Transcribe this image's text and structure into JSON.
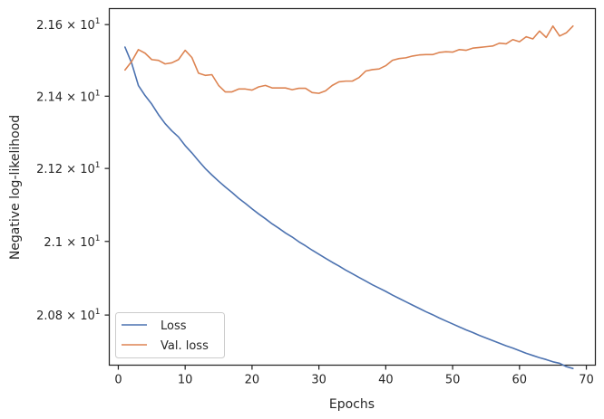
{
  "chart_data": {
    "type": "line",
    "xlabel": "Epochs",
    "ylabel": "Negative log-likelihood",
    "xlim": [
      -1.35,
      71.35
    ],
    "ylim": [
      20.665,
      21.645
    ],
    "yscale": "log",
    "grid": false,
    "legend_position": "lower-left",
    "x_ticks": [
      {
        "value": 0,
        "label": "0"
      },
      {
        "value": 10,
        "label": "10"
      },
      {
        "value": 20,
        "label": "20"
      },
      {
        "value": 30,
        "label": "30"
      },
      {
        "value": 40,
        "label": "40"
      },
      {
        "value": 50,
        "label": "50"
      },
      {
        "value": 60,
        "label": "60"
      },
      {
        "value": 70,
        "label": "70"
      }
    ],
    "y_ticks": [
      {
        "value": 20.8,
        "mantissa": "2.08",
        "exponent": "1"
      },
      {
        "value": 21.0,
        "mantissa": "2.1",
        "exponent": "1"
      },
      {
        "value": 21.2,
        "mantissa": "2.12",
        "exponent": "1"
      },
      {
        "value": 21.4,
        "mantissa": "2.14",
        "exponent": "1"
      },
      {
        "value": 21.6,
        "mantissa": "2.16",
        "exponent": "1"
      }
    ],
    "x": [
      1,
      2,
      3,
      4,
      5,
      6,
      7,
      8,
      9,
      10,
      11,
      12,
      13,
      14,
      15,
      16,
      17,
      18,
      19,
      20,
      21,
      22,
      23,
      24,
      25,
      26,
      27,
      28,
      29,
      30,
      31,
      32,
      33,
      34,
      35,
      36,
      37,
      38,
      39,
      40,
      41,
      42,
      43,
      44,
      45,
      46,
      47,
      48,
      49,
      50,
      51,
      52,
      53,
      54,
      55,
      56,
      57,
      58,
      59,
      60,
      61,
      62,
      63,
      64,
      65,
      66,
      67,
      68
    ],
    "series": [
      {
        "name": "Loss",
        "color": "#4c72b0",
        "values": [
          21.537,
          21.492,
          21.43,
          21.402,
          21.378,
          21.349,
          21.324,
          21.304,
          21.287,
          21.263,
          21.243,
          21.221,
          21.2,
          21.182,
          21.165,
          21.149,
          21.134,
          21.118,
          21.104,
          21.089,
          21.075,
          21.062,
          21.048,
          21.036,
          21.023,
          21.012,
          20.999,
          20.988,
          20.976,
          20.965,
          20.954,
          20.943,
          20.933,
          20.922,
          20.912,
          20.902,
          20.892,
          20.882,
          20.873,
          20.864,
          20.854,
          20.845,
          20.836,
          20.827,
          20.818,
          20.809,
          20.801,
          20.792,
          20.784,
          20.776,
          20.768,
          20.76,
          20.753,
          20.745,
          20.738,
          20.731,
          20.724,
          20.717,
          20.711,
          20.704,
          20.697,
          20.691,
          20.685,
          20.68,
          20.674,
          20.67,
          20.661,
          20.656
        ]
      },
      {
        "name": "Val. loss",
        "color": "#dd8452",
        "values": [
          21.473,
          21.497,
          21.53,
          21.52,
          21.502,
          21.5,
          21.49,
          21.493,
          21.502,
          21.528,
          21.508,
          21.464,
          21.458,
          21.46,
          21.43,
          21.412,
          21.412,
          21.42,
          21.42,
          21.417,
          21.426,
          21.43,
          21.423,
          21.423,
          21.423,
          21.418,
          21.422,
          21.422,
          21.41,
          21.408,
          21.415,
          21.43,
          21.44,
          21.442,
          21.442,
          21.452,
          21.47,
          21.474,
          21.476,
          21.485,
          21.5,
          21.505,
          21.507,
          21.512,
          21.515,
          21.516,
          21.516,
          21.522,
          21.524,
          21.523,
          21.53,
          21.528,
          21.534,
          21.536,
          21.538,
          21.54,
          21.548,
          21.546,
          21.558,
          21.552,
          21.566,
          21.56,
          21.582,
          21.564,
          21.596,
          21.568,
          21.577,
          21.596
        ]
      }
    ]
  }
}
